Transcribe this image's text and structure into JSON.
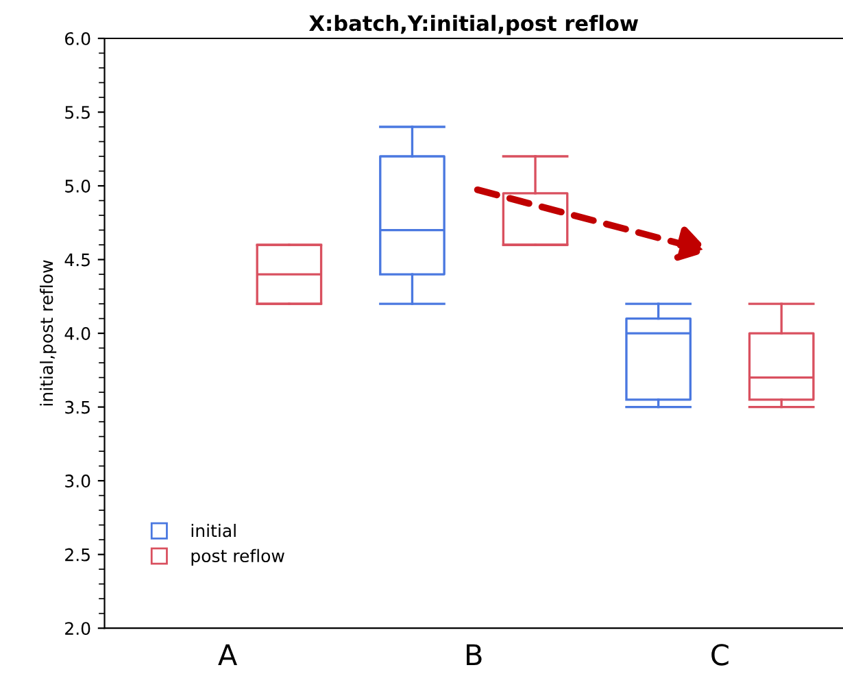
{
  "chart_data": {
    "type": "box",
    "title": "X:batch,Y:initial,post reflow",
    "ylabel": "initial,post reflow",
    "categories": [
      "A",
      "B",
      "C"
    ],
    "series": [
      {
        "name": "initial",
        "color": "#4a78e0",
        "boxes": [
          null,
          {
            "low": 4.2,
            "q1": 4.4,
            "median": 4.7,
            "q3": 5.2,
            "high": 5.4
          },
          {
            "low": 3.5,
            "q1": 3.55,
            "median": 4.0,
            "q3": 4.1,
            "high": 4.2
          }
        ]
      },
      {
        "name": "post reflow",
        "color": "#d9505f",
        "boxes": [
          {
            "low": 4.2,
            "q1": 4.2,
            "median": 4.4,
            "q3": 4.6,
            "high": 4.6
          },
          {
            "low": 4.6,
            "q1": 4.6,
            "median": 4.6,
            "q3": 4.95,
            "high": 5.2
          },
          {
            "low": 3.5,
            "q1": 3.55,
            "median": 3.7,
            "q3": 4.0,
            "high": 4.2
          }
        ]
      }
    ],
    "ylim": [
      2.0,
      6.0
    ],
    "yticks": [
      {
        "value": 2,
        "label": "2.0"
      },
      {
        "value": 2.5,
        "label": "2.5"
      },
      {
        "value": 3,
        "label": "3.0"
      },
      {
        "value": 3.5,
        "label": "3.5"
      },
      {
        "value": 4,
        "label": "4.0"
      },
      {
        "value": 4.5,
        "label": "4.5"
      },
      {
        "value": 5,
        "label": "5.0"
      },
      {
        "value": 5.5,
        "label": "5.5"
      },
      {
        "value": 6,
        "label": "6.0"
      }
    ],
    "legend": "bottom left",
    "grid": false
  }
}
